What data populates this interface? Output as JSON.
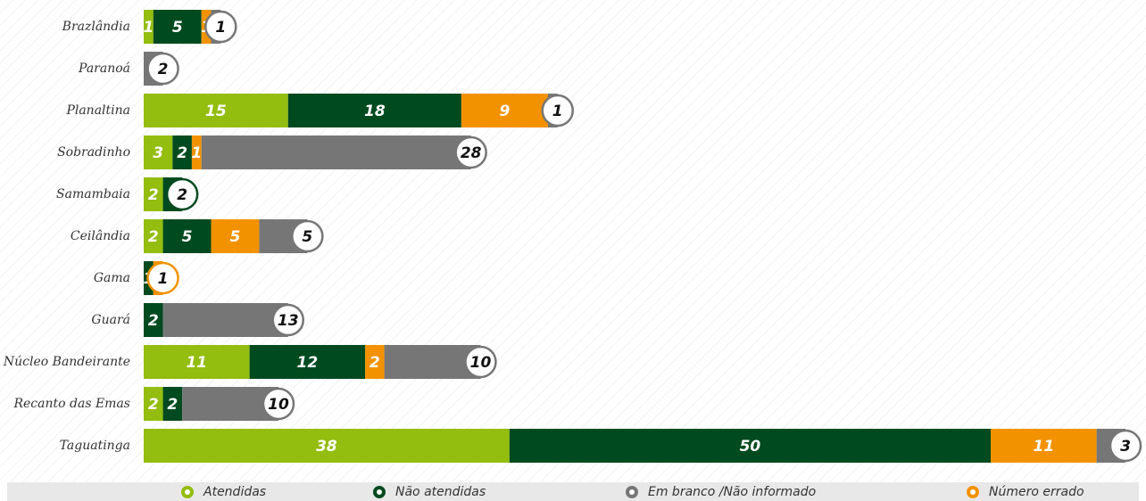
{
  "chart_data": {
    "type": "stacked-bar-horizontal",
    "categories": [
      "Brazlândia",
      "Paranoá",
      "Planaltina",
      "Sobradinho",
      "Samambaia",
      "Ceilândia",
      "Gama",
      "Guará",
      "Núcleo Bandeirante",
      "Recanto das Emas",
      "Taguatinga"
    ],
    "series": [
      {
        "name": "Atendidas",
        "color": "#93bd0f",
        "values": [
          1,
          null,
          15,
          3,
          2,
          2,
          null,
          null,
          11,
          2,
          38
        ]
      },
      {
        "name": "Não atendidas",
        "color": "#004a1f",
        "values": [
          5,
          null,
          18,
          2,
          2,
          5,
          1,
          2,
          12,
          2,
          50
        ]
      },
      {
        "name": "Em branco /Não informado",
        "color": "#767676",
        "values": [
          1,
          2,
          1,
          28,
          null,
          5,
          null,
          13,
          10,
          10,
          3
        ]
      },
      {
        "name": "Número errado",
        "color": "#f39200",
        "values": [
          1,
          null,
          9,
          1,
          null,
          5,
          1,
          null,
          2,
          null,
          11
        ]
      }
    ]
  }
}
